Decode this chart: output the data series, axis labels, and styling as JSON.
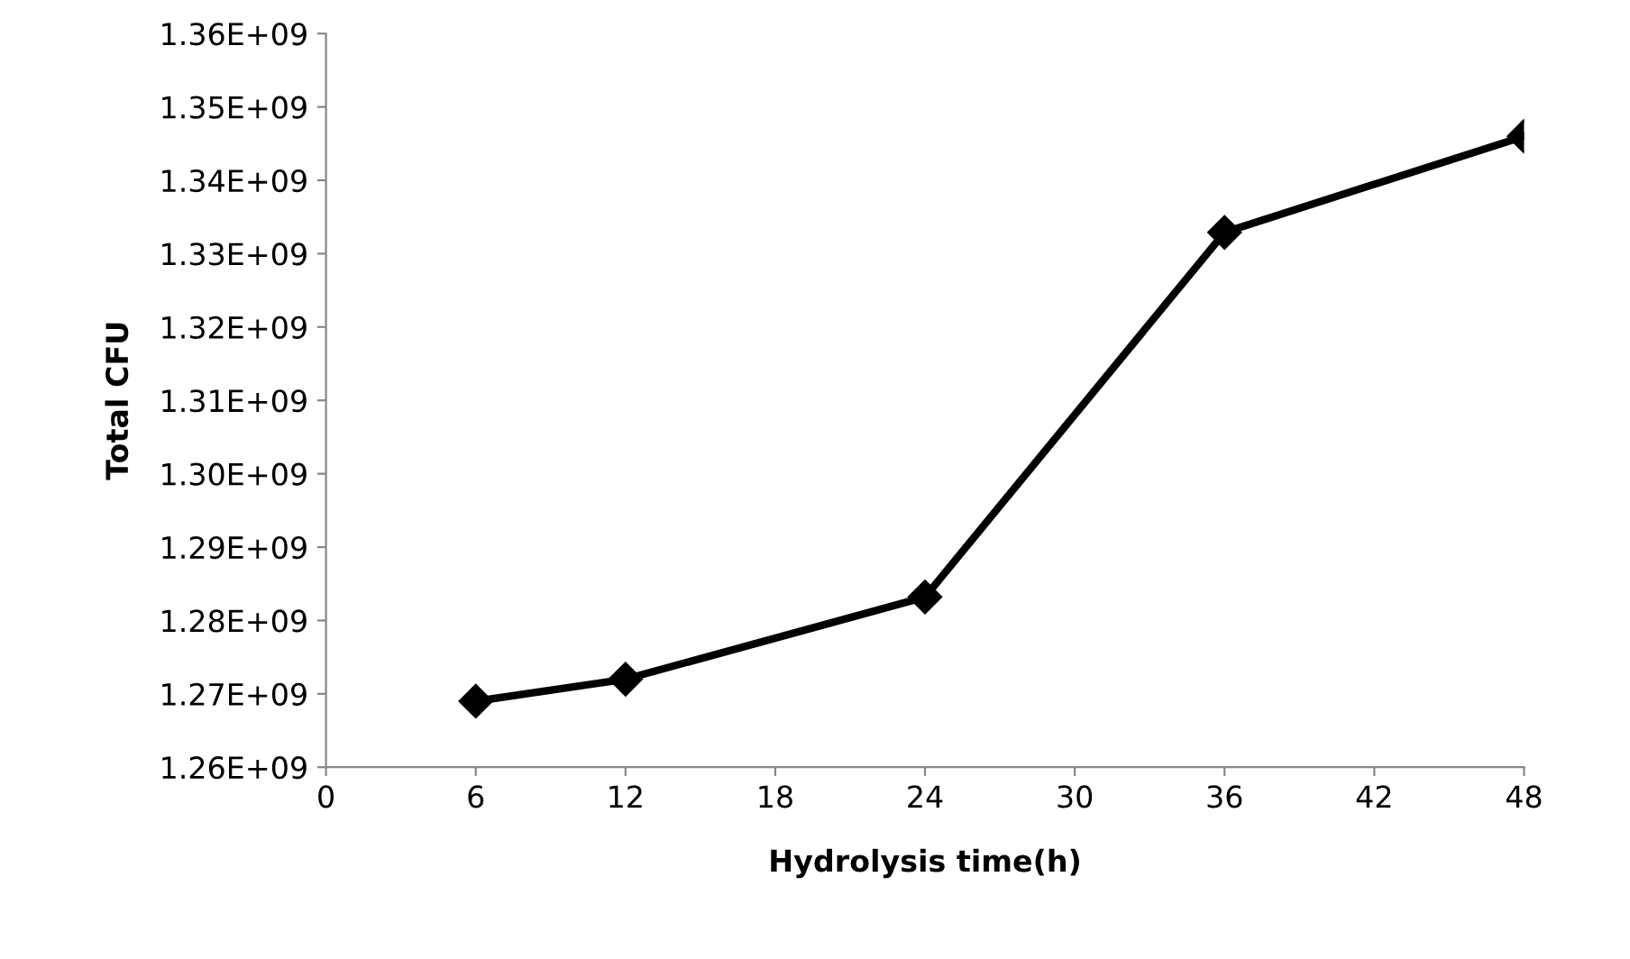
{
  "chart_data": {
    "type": "line",
    "xlabel": "Hydrolysis time(h)",
    "ylabel": "Total CFU",
    "x": [
      6,
      12,
      24,
      36,
      48
    ],
    "series": [
      {
        "color": "#000000",
        "values": [
          1269000000,
          1272000000,
          1283200000,
          1332900000,
          1346000000
        ]
      }
    ],
    "xlim": [
      0,
      48
    ],
    "xticks": [
      0,
      6,
      12,
      18,
      24,
      30,
      36,
      42,
      48
    ],
    "ylim": [
      1260000000,
      1360000000
    ],
    "yticks": [
      {
        "value": 1260000000,
        "label": "1.26E+09"
      },
      {
        "value": 1270000000,
        "label": "1.27E+09"
      },
      {
        "value": 1280000000,
        "label": "1.28E+09"
      },
      {
        "value": 1290000000,
        "label": "1.29E+09"
      },
      {
        "value": 1300000000,
        "label": "1.30E+09"
      },
      {
        "value": 1310000000,
        "label": "1.31E+09"
      },
      {
        "value": 1320000000,
        "label": "1.32E+09"
      },
      {
        "value": 1330000000,
        "label": "1.33E+09"
      },
      {
        "value": 1340000000,
        "label": "1.34E+09"
      },
      {
        "value": 1350000000,
        "label": "1.35E+09"
      },
      {
        "value": 1360000000,
        "label": "1.36E+09"
      }
    ],
    "marker": "diamond",
    "line_style": "solid",
    "grid": false,
    "legend": false
  }
}
